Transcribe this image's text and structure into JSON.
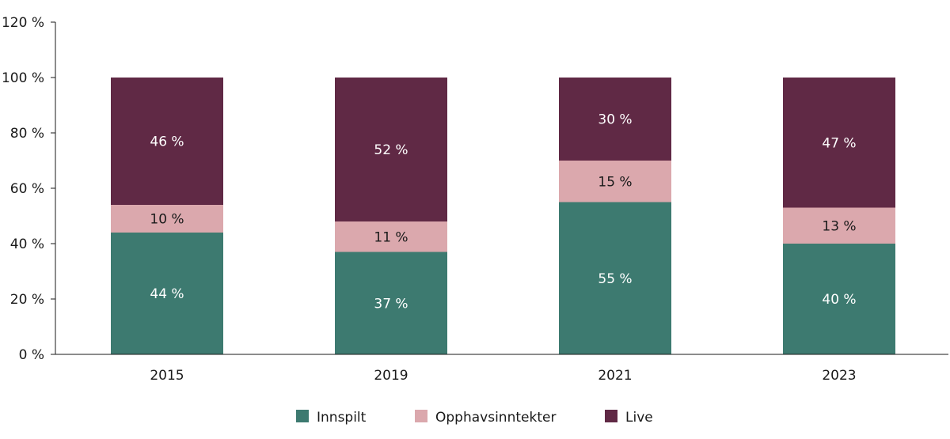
{
  "chart_data": {
    "type": "bar",
    "stacked": true,
    "categories": [
      "2015",
      "2019",
      "2021",
      "2023"
    ],
    "series": [
      {
        "name": "Innspilt",
        "values": [
          44,
          37,
          55,
          40
        ],
        "labels": [
          "44 %",
          "37 %",
          "55 %",
          "40 %"
        ],
        "color": "#3d7a70"
      },
      {
        "name": "Opphavsinntekter",
        "values": [
          10,
          11,
          15,
          13
        ],
        "labels": [
          "10 %",
          "11 %",
          "15 %",
          "13 %"
        ],
        "color": "#dba8ad"
      },
      {
        "name": "Live",
        "values": [
          46,
          52,
          30,
          47
        ],
        "labels": [
          "46 %",
          "52 %",
          "30 %",
          "47 %"
        ],
        "color": "#602945"
      }
    ],
    "ylim": [
      0,
      120
    ],
    "yticks": [
      0,
      20,
      40,
      60,
      80,
      100,
      120
    ],
    "ytick_labels": [
      "0 %",
      "20 %",
      "40 %",
      "60 %",
      "80 %",
      "100 %",
      "120 %"
    ],
    "grid": false,
    "legend_position": "bottom"
  }
}
